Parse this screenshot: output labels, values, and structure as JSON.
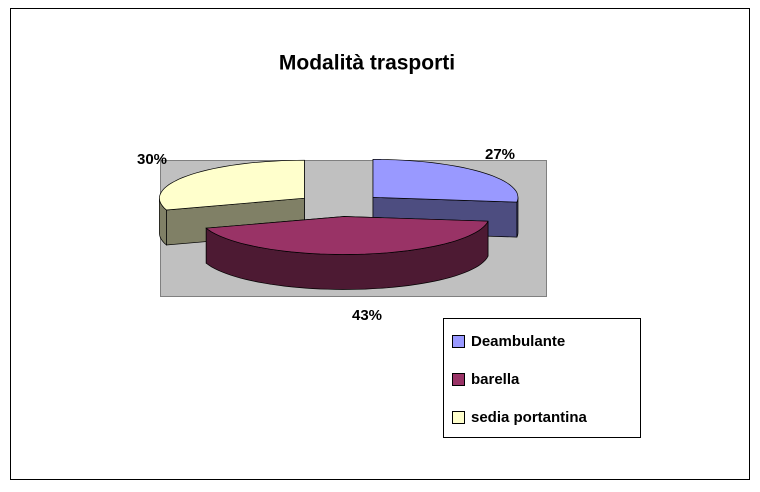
{
  "chart_data": {
    "type": "pie",
    "title": "Modalità trasporti",
    "categories": [
      "Deambulante",
      "barella",
      "sedia portantina"
    ],
    "values": [
      27,
      43,
      30
    ],
    "value_labels": [
      "27%",
      "43%",
      "30%"
    ],
    "colors": [
      "#9999ff",
      "#993366",
      "#ffffcc"
    ],
    "legend": "right"
  }
}
